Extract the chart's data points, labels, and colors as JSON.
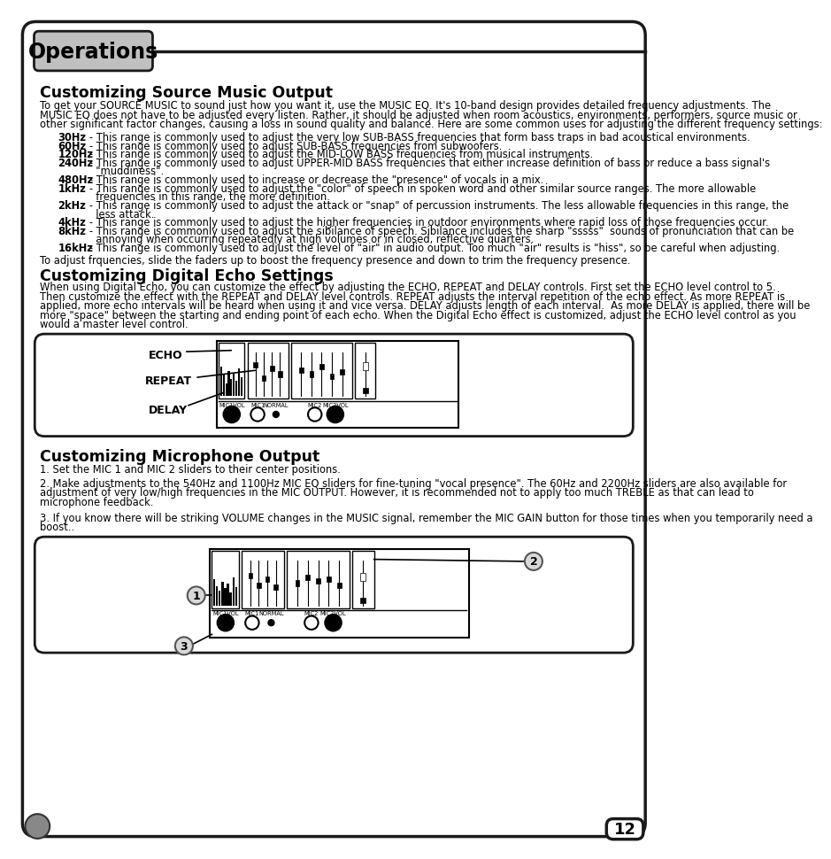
{
  "bg_color": "#ffffff",
  "header_bg": "#c0c0c0",
  "header_text": "Operations",
  "section1_title": "Customizing Source Music Output",
  "section1_intro": [
    "To get your SOURCE MUSIC to sound just how you want it, use the MUSIC EQ. It's 10-band design provides detailed frequency adjustments. The",
    "MUSIC EQ does not have to be adjusted every listen. Rather, it should be adjusted when room acoustics, environments, performers, source music or",
    "other significant factor changes, causing a loss in sound quality and balance. Here are some common uses for adjusting the different frequency settings:"
  ],
  "freq_items": [
    [
      "30Hz",
      "- This range is commonly used to adjust the very low SUB-BASS frequencies that form bass traps in bad acoustical environments.",
      false
    ],
    [
      "60Hz",
      "- This range is commonly used to adjust SUB-BASS frequencies from subwoofers.",
      false
    ],
    [
      "120Hz",
      "- This range is commonly used to adjust the MID-LOW BASS frequencies from musical instruments.",
      false
    ],
    [
      "240Hz",
      "- This range is commonly used to adjust UPPER-MID BASS frequencies that either increase definition of bass or reduce a bass signal's",
      true
    ],
    [
      "",
      "  \"muddiness\".",
      false
    ],
    [
      "480Hz",
      "- This range is commonly used to increase or decrease the \"presence\" of vocals in a mix.",
      false
    ],
    [
      "1kHz",
      "- This range is commonly used to adjust the \"color\" of speech in spoken word and other similar source ranges. The more allowable",
      true
    ],
    [
      "",
      "  frequencies in this range, the more definition.",
      false
    ],
    [
      "2kHz",
      "- This range is commonly used to adjust the attack or \"snap\" of percussion instruments. The less allowable frequencies in this range, the",
      true
    ],
    [
      "",
      "  less attack.",
      false
    ],
    [
      "4kHz",
      "- This range is commonly used to adjust the higher frequencies in outdoor environments where rapid loss of those frequencies occur.",
      false
    ],
    [
      "8kHz",
      "- This range is commonly used to adjust the sibilance of speech. Sibilance includes the sharp \"sssss\"  sounds of pronunciation that can be",
      true
    ],
    [
      "",
      "  annoying when occurring repeatedly at high volumes or in closed, reflective quarters.",
      false
    ],
    [
      "16kHz",
      "- This range is commonly used to adjust the level of \"air\" in audio output. Too much \"air\" results is \"hiss\", so be careful when adjusting.",
      false
    ]
  ],
  "section1_footer": "To adjust frquencies, slide the faders up to boost the frequency presence and down to trim the frequency presence.",
  "section2_title": "Customizing Digital Echo Settings",
  "section2_text": [
    "When using Digital Echo, you can customize the effect by adjusting the ECHO, REPEAT and DELAY controls. First set the ECHO level control to 5.",
    "Then customize the effect with the REPEAT and DELAY level controls. REPEAT adjusts the interval repetition of the echo effect. As more REPEAT is",
    "applied, more echo intervals will be heard when using it and vice versa. DELAY adjusts length of each interval.  As more DELAY is applied, there will be",
    "more \"space\" between the starting and ending point of each echo. When the Digital Echo effect is customized, adjust the ECHO level control as you",
    "would a master level control."
  ],
  "section3_title": "Customizing Microphone Output",
  "section3_item1": "1. Set the MIC 1 and MIC 2 sliders to their center positions.",
  "section3_item2": [
    "2. Make adjustments to the 540Hz and 1100Hz MIC EQ sliders for fine-tuning \"vocal presence\". The 60Hz and 2200Hz sliders are also available for",
    "adjustment of very low/high frequencies in the MIC OUTPUT. However, it is recommended not to apply too much TREBLE as that can lead to",
    "microphone feedback."
  ],
  "section3_item3": [
    "3. If you know there will be striking VOLUME changes in the MUSIC signal, remember the MIC GAIN button for those times when you temporarily need a",
    "boost.."
  ],
  "page_number": "12"
}
